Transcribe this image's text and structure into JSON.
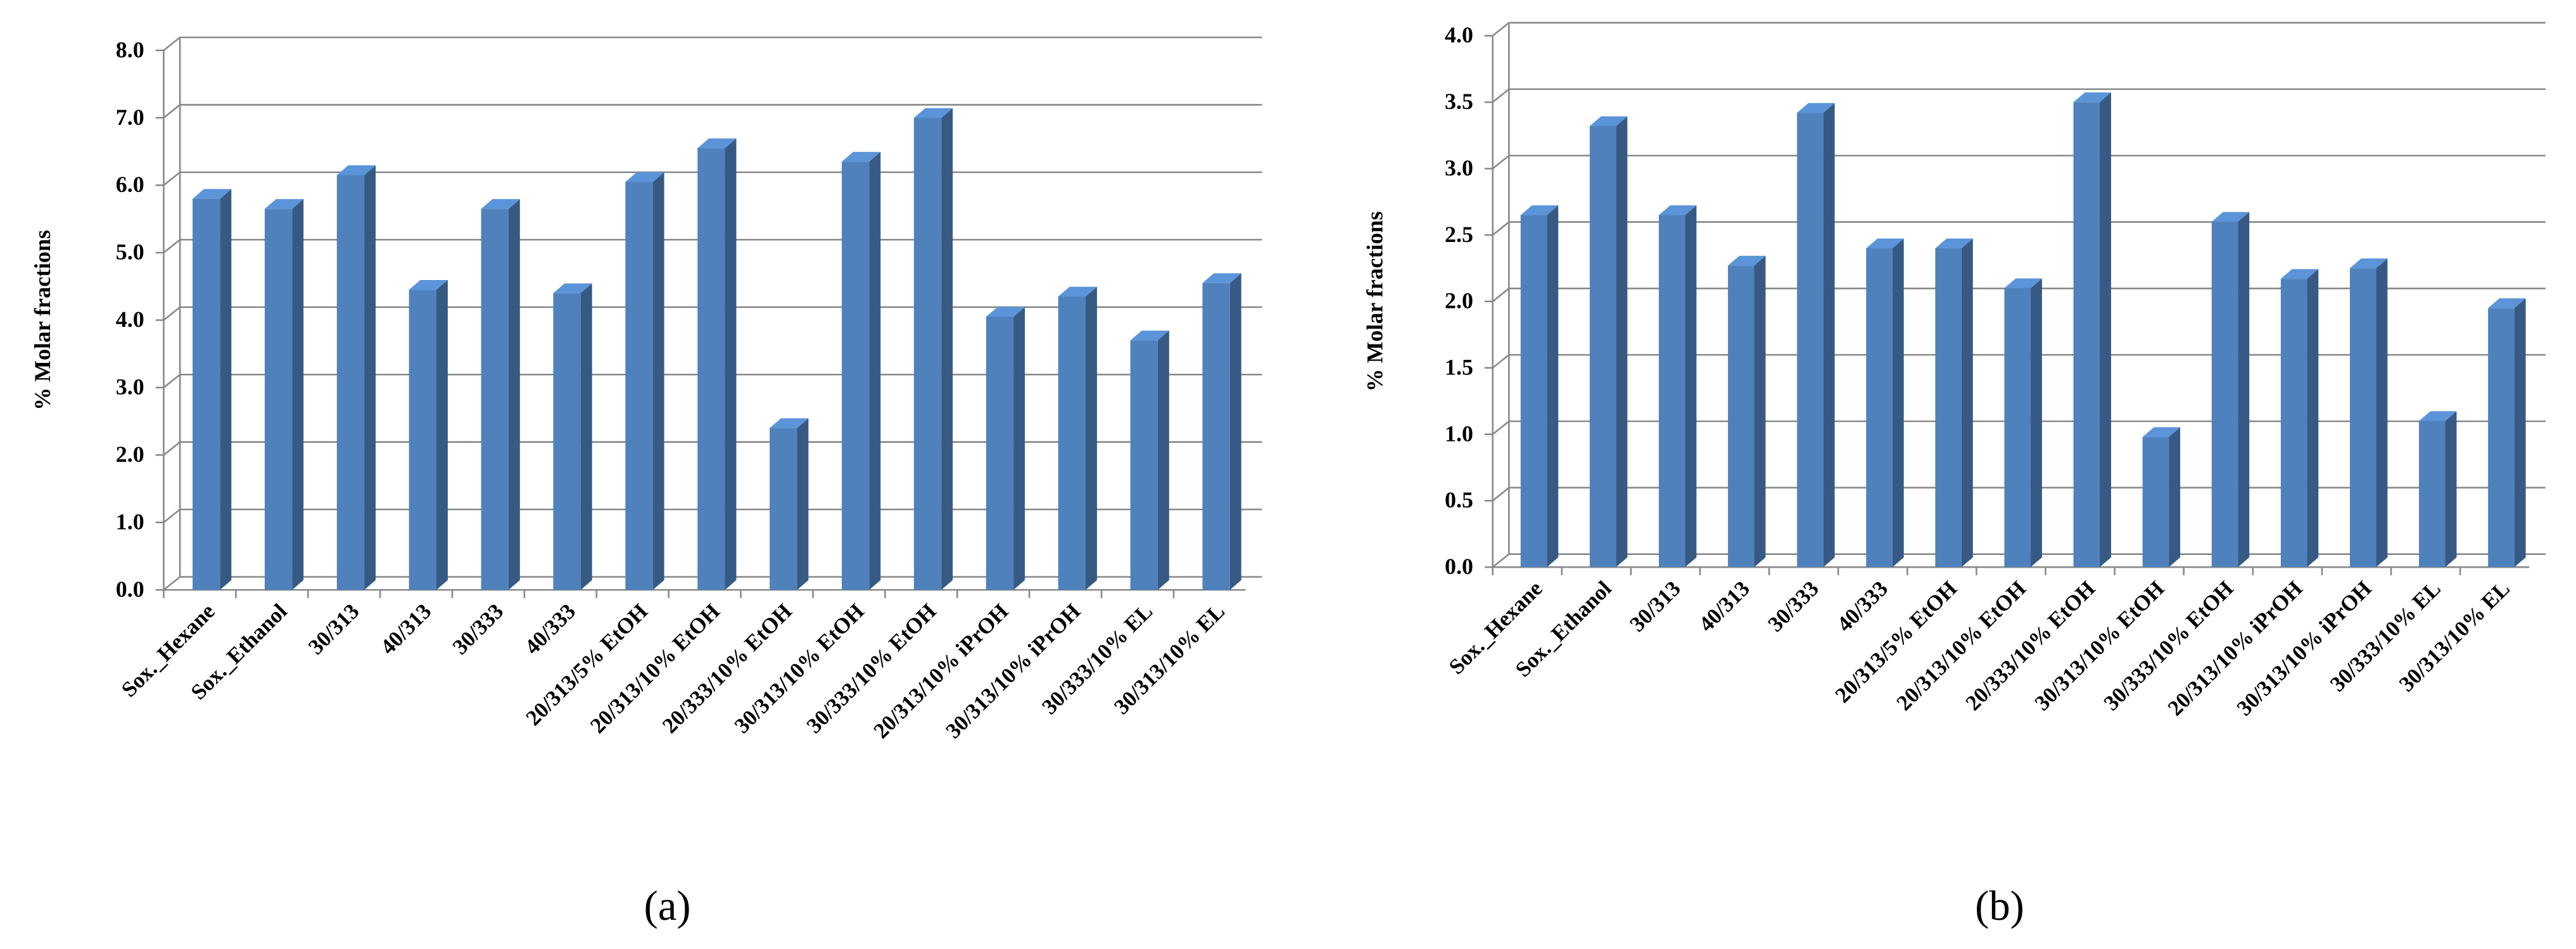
{
  "chart_data": [
    {
      "type": "bar",
      "caption": "(a)",
      "ylabel": "% Molar fractions",
      "categories": [
        "Sox._Hexane",
        "Sox._Ethanol",
        "30/313",
        "40/313",
        "30/333",
        "40/333",
        "20/313/5% EtOH",
        "20/313/10% EtOH",
        "20/333/10% EtOH",
        "30/313/10% EtOH",
        "30/333/10% EtOH",
        "20/313/10% iPrOH",
        "30/313/10% iPrOH",
        "30/333/10% EL",
        "30/313/10% EL"
      ],
      "values": [
        5.8,
        5.65,
        6.15,
        4.45,
        5.65,
        4.4,
        6.05,
        6.55,
        2.4,
        6.35,
        7.0,
        4.05,
        4.35,
        3.7,
        4.55
      ],
      "color": "#4f81bd",
      "ylim": [
        0,
        8
      ],
      "yticks": [
        {
          "value": 0,
          "label": "0.0"
        },
        {
          "value": 1,
          "label": "1.0"
        },
        {
          "value": 2,
          "label": "2.0"
        },
        {
          "value": 3,
          "label": "3.0"
        },
        {
          "value": 4,
          "label": "4.0"
        },
        {
          "value": 5,
          "label": "5.0"
        },
        {
          "value": 6,
          "label": "6.0"
        },
        {
          "value": 7,
          "label": "7.0"
        },
        {
          "value": 8,
          "label": "8.0"
        }
      ],
      "grid": true
    },
    {
      "type": "bar",
      "caption": "(b)",
      "ylabel": "% Molar fractions",
      "categories": [
        "Sox._Hexane",
        "Sox._Ethanol",
        "30/313",
        "40/313",
        "30/333",
        "40/333",
        "20/313/5% EtOH",
        "20/313/10% EtOH",
        "20/333/10% EtOH",
        "30/313/10% EtOH",
        "30/333/10% EtOH",
        "20/313/10% iPrOH",
        "30/313/10% iPrOH",
        "30/333/10% EL",
        "30/313/10% EL"
      ],
      "values": [
        2.65,
        3.32,
        2.65,
        2.27,
        3.42,
        2.4,
        2.4,
        2.1,
        3.5,
        0.98,
        2.6,
        2.17,
        2.25,
        1.1,
        1.95
      ],
      "color": "#4f81bd",
      "ylim": [
        0,
        4
      ],
      "yticks": [
        {
          "value": 0,
          "label": "0.0"
        },
        {
          "value": 0.5,
          "label": "0.5"
        },
        {
          "value": 1,
          "label": "1.0"
        },
        {
          "value": 1.5,
          "label": "1.5"
        },
        {
          "value": 2,
          "label": "2.0"
        },
        {
          "value": 2.5,
          "label": "2.5"
        },
        {
          "value": 3,
          "label": "3.0"
        },
        {
          "value": 3.5,
          "label": "3.5"
        },
        {
          "value": 4,
          "label": "4.0"
        }
      ],
      "grid": true
    }
  ]
}
